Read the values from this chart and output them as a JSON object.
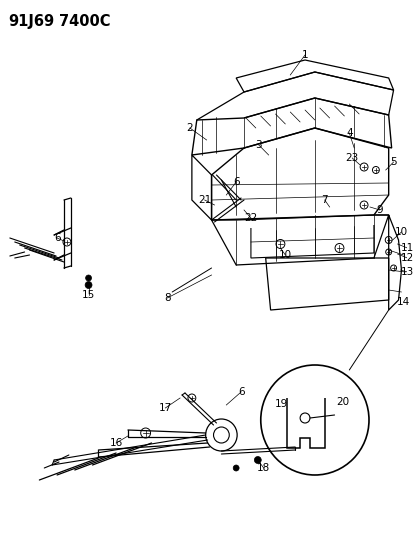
{
  "title_part1": "91J69",
  "title_part2": "7400C",
  "bg_color": "#ffffff",
  "title_fontsize": 10.5,
  "label_fontsize": 7.5,
  "label_fontsize_large": 9.0
}
